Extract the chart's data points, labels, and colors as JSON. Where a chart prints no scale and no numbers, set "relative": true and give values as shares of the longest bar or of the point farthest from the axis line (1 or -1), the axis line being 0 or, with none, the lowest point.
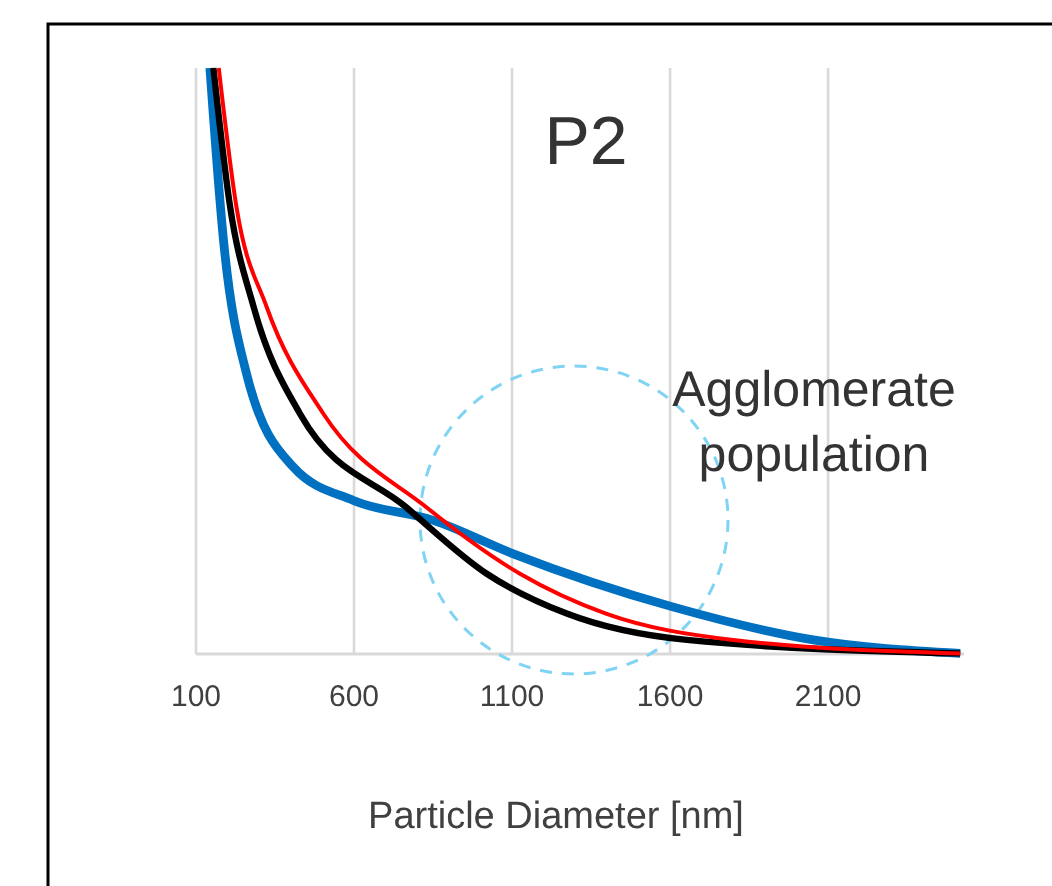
{
  "chart_data": {
    "type": "line",
    "relative": true,
    "xlabel": "Particle Diameter [nm]",
    "xlim": [
      100,
      2530
    ],
    "xticks": [
      100,
      600,
      1100,
      1600,
      2100
    ],
    "grid": "x",
    "annotations": [
      "P2",
      "Agglomerate population"
    ],
    "series": [
      {
        "color": "#0070c0",
        "x": [
          144,
          187,
          260,
          408,
          598,
          851,
          1104,
          1611,
          2053,
          2518
        ],
        "values": [
          1.0,
          0.706,
          0.478,
          0.319,
          0.262,
          0.228,
          0.171,
          0.08,
          0.024,
          0.001
        ]
      },
      {
        "color": "#000000",
        "x": [
          155,
          208,
          282,
          429,
          766,
          1020,
          1273,
          1653,
          2518
        ],
        "values": [
          1.0,
          0.763,
          0.593,
          0.41,
          0.25,
          0.137,
          0.069,
          0.024,
          0.001
        ]
      },
      {
        "color": "#ff0000",
        "x": [
          172,
          228,
          323,
          503,
          830,
          1125,
          1397,
          1800,
          2518
        ],
        "values": [
          1.0,
          0.763,
          0.593,
          0.41,
          0.25,
          0.137,
          0.069,
          0.024,
          0.001
        ]
      }
    ]
  }
}
